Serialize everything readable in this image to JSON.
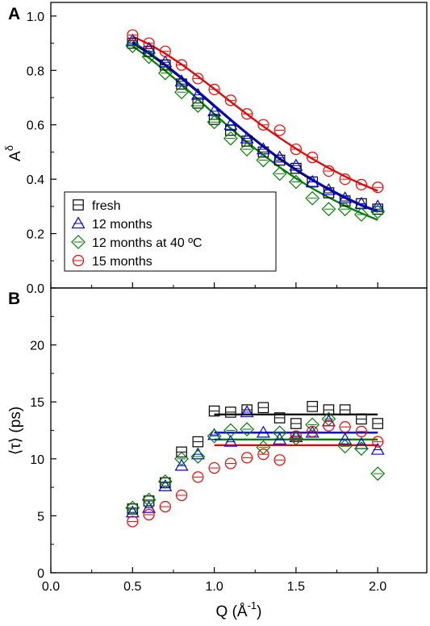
{
  "chart_data": [
    {
      "panel_label": "A",
      "type": "scatter",
      "ylabel": "A",
      "ylabel_sup": "δ",
      "xlim": [
        0.0,
        2.3
      ],
      "ylim": [
        0.0,
        1.05
      ],
      "yticks": [
        0.0,
        0.2,
        0.4,
        0.6,
        0.8,
        1.0
      ],
      "ytick_labels": [
        "0.0",
        "0.2",
        "0.4",
        "0.6",
        "0.8",
        "1.0"
      ],
      "legend": {
        "position": "bottom-left"
      },
      "series": [
        {
          "name": "fresh",
          "marker": "square",
          "color": "#000000",
          "x": [
            0.5,
            0.6,
            0.7,
            0.8,
            0.9,
            1.0,
            1.1,
            1.2,
            1.3,
            1.4,
            1.5,
            1.6,
            1.7,
            1.8,
            1.9,
            2.0
          ],
          "y": [
            0.9,
            0.87,
            0.82,
            0.75,
            0.68,
            0.62,
            0.58,
            0.54,
            0.5,
            0.47,
            0.44,
            0.39,
            0.35,
            0.32,
            0.31,
            0.29
          ],
          "fit_x": [
            0.5,
            0.6,
            0.7,
            0.8,
            0.9,
            1.0,
            1.1,
            1.2,
            1.3,
            1.4,
            1.5,
            1.6,
            1.7,
            1.8,
            1.9,
            2.0
          ],
          "fit_y": [
            0.9,
            0.862,
            0.818,
            0.77,
            0.72,
            0.668,
            0.617,
            0.567,
            0.519,
            0.474,
            0.433,
            0.396,
            0.362,
            0.331,
            0.303,
            0.28
          ]
        },
        {
          "name": "12 months",
          "marker": "triangle",
          "color": "#0000ee",
          "x": [
            0.5,
            0.6,
            0.7,
            0.8,
            0.9,
            1.0,
            1.1,
            1.2,
            1.3,
            1.4,
            1.5,
            1.6,
            1.7,
            1.8,
            1.9,
            2.0
          ],
          "y": [
            0.91,
            0.88,
            0.83,
            0.76,
            0.71,
            0.65,
            0.6,
            0.55,
            0.51,
            0.48,
            0.45,
            0.39,
            0.36,
            0.33,
            0.31,
            0.3
          ],
          "fit_x": [
            0.5,
            0.6,
            0.7,
            0.8,
            0.9,
            1.0,
            1.1,
            1.2,
            1.3,
            1.4,
            1.5,
            1.6,
            1.7,
            1.8,
            1.9,
            2.0
          ],
          "fit_y": [
            0.905,
            0.866,
            0.822,
            0.774,
            0.724,
            0.672,
            0.62,
            0.57,
            0.522,
            0.477,
            0.436,
            0.399,
            0.365,
            0.334,
            0.306,
            0.283
          ]
        },
        {
          "name": "12 months at 40 ºC",
          "marker": "diamond",
          "color": "#008000",
          "x": [
            0.5,
            0.6,
            0.7,
            0.8,
            0.9,
            1.0,
            1.1,
            1.2,
            1.3,
            1.4,
            1.5,
            1.6,
            1.7,
            1.8,
            1.9,
            2.0
          ],
          "y": [
            0.89,
            0.85,
            0.79,
            0.72,
            0.67,
            0.61,
            0.55,
            0.51,
            0.47,
            0.42,
            0.39,
            0.33,
            0.29,
            0.29,
            0.27,
            0.28
          ],
          "fit_x": [
            0.5,
            0.6,
            0.7,
            0.8,
            0.9,
            1.0,
            1.1,
            1.2,
            1.3,
            1.4,
            1.5,
            1.6,
            1.7,
            1.8,
            1.9,
            2.0
          ],
          "fit_y": [
            0.89,
            0.846,
            0.799,
            0.748,
            0.694,
            0.64,
            0.587,
            0.536,
            0.489,
            0.444,
            0.403,
            0.366,
            0.333,
            0.302,
            0.275,
            0.25
          ]
        },
        {
          "name": "15 months",
          "marker": "circle",
          "color": "#ee0000",
          "x": [
            0.5,
            0.6,
            0.7,
            0.8,
            0.9,
            1.0,
            1.1,
            1.2,
            1.3,
            1.4,
            1.5,
            1.6,
            1.7,
            1.8,
            1.9,
            2.0
          ],
          "y": [
            0.93,
            0.9,
            0.87,
            0.82,
            0.77,
            0.73,
            0.69,
            0.64,
            0.6,
            0.58,
            0.51,
            0.48,
            0.43,
            0.4,
            0.38,
            0.37
          ],
          "fit_x": [
            0.5,
            0.6,
            0.7,
            0.8,
            0.9,
            1.0,
            1.1,
            1.2,
            1.3,
            1.4,
            1.5,
            1.6,
            1.7,
            1.8,
            1.9,
            2.0
          ],
          "fit_y": [
            0.925,
            0.897,
            0.862,
            0.822,
            0.778,
            0.732,
            0.685,
            0.639,
            0.594,
            0.552,
            0.512,
            0.475,
            0.441,
            0.41,
            0.382,
            0.357
          ]
        }
      ]
    },
    {
      "panel_label": "B",
      "type": "scatter",
      "ylabel": "⟨τ⟩ (ps)",
      "xlabel": "Q (Å",
      "xlabel_sup": "-1",
      "xlabel_end": ")",
      "xlim": [
        0.0,
        2.3
      ],
      "ylim": [
        0,
        25
      ],
      "yticks": [
        0,
        5,
        10,
        15,
        20
      ],
      "ytick_labels": [
        "0",
        "5",
        "10",
        "15",
        "20"
      ],
      "xticks": [
        0.0,
        0.5,
        1.0,
        1.5,
        2.0
      ],
      "xtick_labels": [
        "0.0",
        "0.5",
        "1.0",
        "1.5",
        "2.0"
      ],
      "series": [
        {
          "name": "fresh",
          "marker": "square",
          "color": "#000000",
          "x": [
            0.5,
            0.6,
            0.7,
            0.8,
            0.9,
            1.0,
            1.1,
            1.2,
            1.3,
            1.4,
            1.5,
            1.6,
            1.7,
            1.8,
            1.9,
            2.0
          ],
          "y": [
            5.6,
            6.3,
            7.9,
            10.6,
            11.5,
            14.2,
            14.1,
            14.3,
            14.5,
            13.6,
            13.1,
            14.6,
            14.3,
            14.3,
            13.5,
            13.1
          ],
          "fit_x": [
            1.0,
            2.0
          ],
          "fit_y": [
            13.9,
            13.9
          ]
        },
        {
          "name": "12 months",
          "marker": "triangle",
          "color": "#0000ee",
          "x": [
            0.5,
            0.6,
            0.7,
            0.8,
            0.9,
            1.0,
            1.1,
            1.2,
            1.3,
            1.4,
            1.5,
            1.6,
            1.7,
            1.8,
            1.9,
            2.0
          ],
          "y": [
            5.3,
            5.7,
            7.6,
            9.4,
            10.4,
            12.1,
            11.5,
            14.1,
            12.3,
            11.7,
            11.9,
            12.3,
            13.3,
            11.7,
            11.3,
            10.8
          ],
          "fit_x": [
            1.0,
            2.0
          ],
          "fit_y": [
            12.3,
            12.3
          ]
        },
        {
          "name": "12 months at 40 ºC",
          "marker": "diamond",
          "color": "#008000",
          "x": [
            0.5,
            0.6,
            0.7,
            0.8,
            0.9,
            1.0,
            1.1,
            1.2,
            1.3,
            1.4,
            1.5,
            1.6,
            1.7,
            1.8,
            1.9,
            2.0
          ],
          "y": [
            5.7,
            6.4,
            8.0,
            10.0,
            10.2,
            12.0,
            12.5,
            12.6,
            11.0,
            12.3,
            11.8,
            13.0,
            13.5,
            11.1,
            10.9,
            8.7
          ],
          "fit_x": [
            1.0,
            2.0
          ],
          "fit_y": [
            11.7,
            11.7
          ]
        },
        {
          "name": "15 months",
          "marker": "circle",
          "color": "#ee0000",
          "x": [
            0.5,
            0.6,
            0.7,
            0.8,
            0.9,
            1.0,
            1.1,
            1.2,
            1.3,
            1.4,
            1.5,
            1.6,
            1.7,
            1.8,
            1.9,
            2.0
          ],
          "y": [
            4.5,
            5.1,
            5.8,
            6.8,
            8.4,
            9.2,
            9.6,
            10.1,
            10.4,
            9.9,
            12.0,
            12.4,
            12.9,
            12.8,
            12.4,
            11.5
          ],
          "fit_x": [
            1.0,
            2.0
          ],
          "fit_y": [
            11.2,
            11.2
          ]
        }
      ]
    }
  ]
}
